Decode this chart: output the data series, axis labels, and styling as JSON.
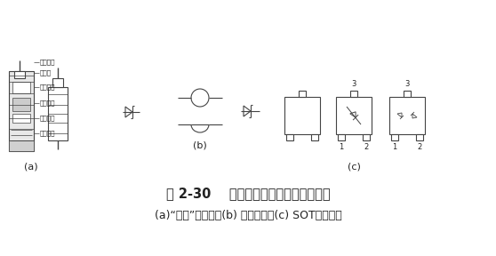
{
  "title_line1": "图 2-30    肖特基二极管的基本封装结构",
  "title_line2": "(a)“炮弹”式封装；(b) 微带封装；(c) SOT贴片封装",
  "label_a": "(a)",
  "label_b": "(b)",
  "label_c": "(c)",
  "labels_a_detail": [
    "金属电极",
    "金属丝",
    "半导体片",
    "陶瓷管壳",
    "调节螺丝",
    "金属电极"
  ],
  "bg_color": "#ffffff",
  "line_color": "#444444",
  "text_color": "#222222"
}
